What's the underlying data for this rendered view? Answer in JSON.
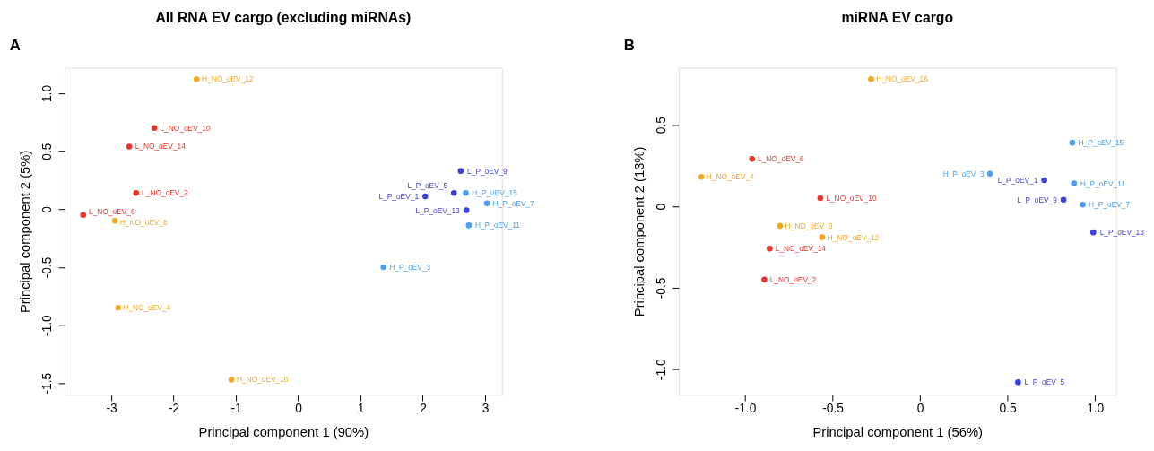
{
  "chart_data": [
    {
      "type": "scatter",
      "title": "All RNA EV cargo (excluding miRNAs)",
      "xlabel": "Principal component 1 (90%)",
      "ylabel": "Principal component 2 (5%)",
      "annotations": [
        "A"
      ],
      "marker": "circle",
      "grid": false,
      "xlim": [
        -3.75,
        3.27
      ],
      "ylim": [
        -1.6,
        1.22
      ],
      "xticks": [
        -3,
        -2,
        -1,
        0,
        1,
        2,
        3
      ],
      "yticks": [
        {
          "value": -1.5,
          "label": "-1.5"
        },
        {
          "value": -1,
          "label": "-1.0"
        },
        {
          "value": -0.5,
          "label": "-0.5"
        },
        0,
        {
          "value": 0.5,
          "label": "0.5"
        },
        {
          "value": 1,
          "label": "1.0"
        }
      ],
      "series": [
        {
          "name": "L_NO_oEV_10",
          "color": "#e8352b",
          "x": [
            -2.31
          ],
          "values": [
            0.7
          ]
        },
        {
          "name": "L_NO_oEV_14",
          "color": "#e8352b",
          "x": [
            -2.71
          ],
          "values": [
            0.54
          ]
        },
        {
          "name": "L_NO_oEV_2",
          "color": "#e8352b",
          "x": [
            -2.6
          ],
          "values": [
            0.14
          ]
        },
        {
          "name": "L_NO_oEV_6",
          "color": "#e8352b",
          "x": [
            -3.45
          ],
          "values": [
            -0.05
          ]
        },
        {
          "name": "H_NO_oEV_12",
          "color": "#f5a623",
          "x": [
            -1.63
          ],
          "values": [
            1.12
          ]
        },
        {
          "name": "H_NO_oEV_8",
          "color": "#f5a623",
          "x": [
            -2.94
          ],
          "values": [
            -0.1
          ]
        },
        {
          "name": "H_NO_oEV_4",
          "color": "#f5a623",
          "x": [
            -2.89
          ],
          "values": [
            -0.85
          ]
        },
        {
          "name": "H_NO_oEV_16",
          "color": "#f5a623",
          "x": [
            -1.07
          ],
          "values": [
            -1.47
          ]
        },
        {
          "name": "L_P_oEV_9",
          "color": "#3a3fe0",
          "x": [
            2.61
          ],
          "values": [
            0.33
          ]
        },
        {
          "name": "L_P_oEV_1",
          "color": "#3a3fe0",
          "x": [
            2.04
          ],
          "values": [
            0.11
          ]
        },
        {
          "name": "L_P_oEV_5",
          "color": "#3a3fe0",
          "x": [
            2.5
          ],
          "values": [
            0.14
          ]
        },
        {
          "name": "L_P_oEV_13",
          "color": "#3a3fe0",
          "x": [
            2.7
          ],
          "values": [
            -0.01
          ]
        },
        {
          "name": "H_P_oEV_3",
          "color": "#4a9ff0",
          "x": [
            1.37
          ],
          "values": [
            -0.5
          ]
        },
        {
          "name": "H_P_oEV_15",
          "color": "#4a9ff0",
          "x": [
            2.69
          ],
          "values": [
            0.14
          ]
        },
        {
          "name": "H_P_oEV_7",
          "color": "#4a9ff0",
          "x": [
            3.03
          ],
          "values": [
            0.05
          ]
        },
        {
          "name": "H_P_oEV_11",
          "color": "#4a9ff0",
          "x": [
            2.74
          ],
          "values": [
            -0.14
          ]
        }
      ]
    },
    {
      "type": "scatter",
      "title": "miRNA EV cargo",
      "xlabel": "Principal component 1 (56%)",
      "ylabel": "Principal component 2 (13%)",
      "annotations": [
        "B"
      ],
      "marker": "circle",
      "grid": false,
      "xlim": [
        -1.38,
        1.12
      ],
      "ylim": [
        -1.156,
        0.85
      ],
      "xticks": [
        {
          "value": -1,
          "label": "-1.0"
        },
        {
          "value": -0.5,
          "label": "-0.5"
        },
        0,
        {
          "value": 0.5,
          "label": "0.5"
        },
        {
          "value": 1,
          "label": "1.0"
        }
      ],
      "yticks": [
        {
          "value": -1,
          "label": "-1.0"
        },
        {
          "value": -0.5,
          "label": "-0.5"
        },
        0,
        {
          "value": 0.5,
          "label": "0.5"
        }
      ],
      "series": [
        {
          "name": "L_NO_oEV_6",
          "color": "#e8352b",
          "x": [
            -0.96
          ],
          "values": [
            0.29
          ]
        },
        {
          "name": "L_NO_oEV_10",
          "color": "#e8352b",
          "x": [
            -0.57
          ],
          "values": [
            0.05
          ]
        },
        {
          "name": "L_NO_oEV_14",
          "color": "#e8352b",
          "x": [
            -0.86
          ],
          "values": [
            -0.26
          ]
        },
        {
          "name": "L_NO_oEV_2",
          "color": "#e8352b",
          "x": [
            -0.89
          ],
          "values": [
            -0.45
          ]
        },
        {
          "name": "H_NO_oEV_16",
          "color": "#f5a623",
          "x": [
            -0.28
          ],
          "values": [
            0.78
          ]
        },
        {
          "name": "H_NO_oEV_4",
          "color": "#f5a623",
          "x": [
            -1.25
          ],
          "values": [
            0.18
          ]
        },
        {
          "name": "H_NO_oEV_8",
          "color": "#f5a623",
          "x": [
            -0.8
          ],
          "values": [
            -0.12
          ]
        },
        {
          "name": "H_NO_oEV_12",
          "color": "#f5a623",
          "x": [
            -0.56
          ],
          "values": [
            -0.19
          ]
        },
        {
          "name": "L_P_oEV_1",
          "color": "#3a3fe0",
          "x": [
            0.71
          ],
          "values": [
            0.16
          ]
        },
        {
          "name": "L_P_oEV_9",
          "color": "#3a3fe0",
          "x": [
            0.82
          ],
          "values": [
            0.04
          ]
        },
        {
          "name": "L_P_oEV_13",
          "color": "#3a3fe0",
          "x": [
            0.99
          ],
          "values": [
            -0.16
          ]
        },
        {
          "name": "L_P_oEV_5",
          "color": "#3a3fe0",
          "x": [
            0.56
          ],
          "values": [
            -1.08
          ]
        },
        {
          "name": "H_P_oEV_15",
          "color": "#4a9ff0",
          "x": [
            0.87
          ],
          "values": [
            0.39
          ]
        },
        {
          "name": "H_P_oEV_3",
          "color": "#4a9ff0",
          "x": [
            0.4
          ],
          "values": [
            0.2
          ]
        },
        {
          "name": "H_P_oEV_11",
          "color": "#4a9ff0",
          "x": [
            0.88
          ],
          "values": [
            0.14
          ]
        },
        {
          "name": "H_P_oEV_7",
          "color": "#4a9ff0",
          "x": [
            0.93
          ],
          "values": [
            0.01
          ]
        }
      ]
    }
  ]
}
